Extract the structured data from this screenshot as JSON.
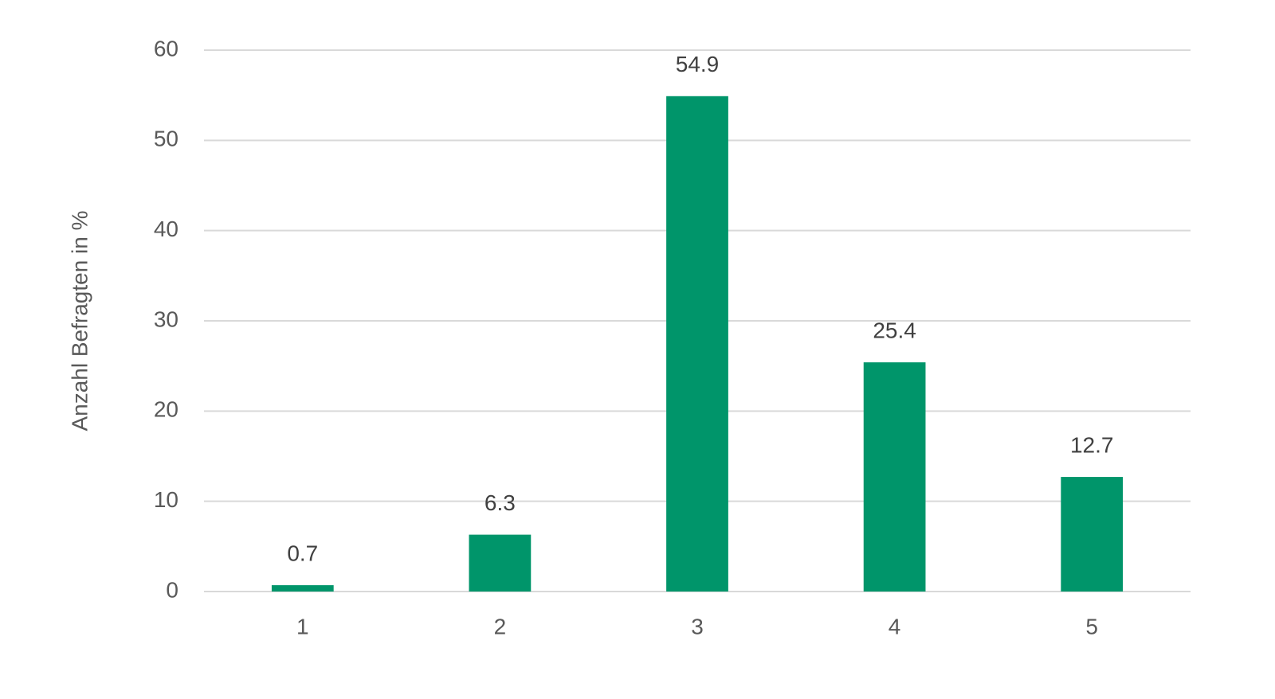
{
  "chart_data": {
    "type": "bar",
    "y_label": "Anzahl Befragten in %",
    "categories": [
      "1",
      "2",
      "3",
      "4",
      "5"
    ],
    "values": [
      0.7,
      6.3,
      54.9,
      25.4,
      12.7
    ],
    "color": "#00956a",
    "ylim": [
      0,
      60
    ],
    "yticks": [
      0,
      10,
      20,
      30,
      40,
      50,
      60
    ],
    "grid": true
  }
}
